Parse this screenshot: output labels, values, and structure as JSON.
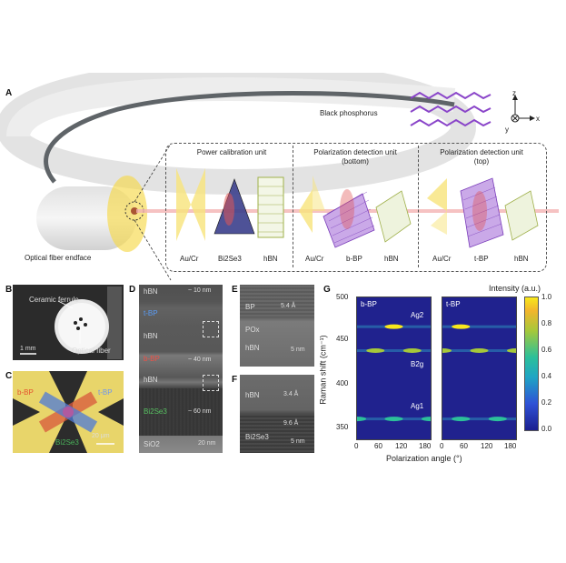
{
  "panels": {
    "A": "A",
    "B": "B",
    "C": "C",
    "D": "D",
    "E": "E",
    "F": "F",
    "G": "G"
  },
  "panelA": {
    "black_phosphorus": "Black phosphorus",
    "axis_z": "z",
    "axis_y": "y",
    "axis_x": "x",
    "fiber_endface": "Optical fiber endface",
    "units": [
      {
        "title": "Power calibration unit",
        "labels": [
          "Au/Cr",
          "Bi2Se3",
          "hBN"
        ]
      },
      {
        "title": "Polarization detection unit",
        "subtitle": "(bottom)",
        "labels": [
          "Au/Cr",
          "b-BP",
          "hBN"
        ]
      },
      {
        "title": "Polarization detection unit",
        "subtitle": "(top)",
        "labels": [
          "Au/Cr",
          "t-BP",
          "hBN"
        ]
      }
    ]
  },
  "panelB": {
    "ceramic_ferrule": "Ceramic ferrule",
    "optical_fiber": "Optical fiber",
    "scale": "1 mm"
  },
  "panelC": {
    "b_bp": "b-BP",
    "t_bp": "t-BP",
    "bi2se3": "Bi2Se3",
    "scale": "20 μm"
  },
  "panelD": {
    "layers": [
      "hBN",
      "t-BP",
      "hBN",
      "b-BP",
      "hBN",
      "Bi2Se3",
      "SiO2"
    ],
    "thick_top": "~ 10 nm",
    "thick_mid": "~ 40 nm",
    "thick_bot": "~ 60 nm",
    "scale": "20 nm"
  },
  "panelE": {
    "bp": "BP",
    "pox": "POx",
    "hbn": "hBN",
    "spacing": "5.4 Å",
    "scale": "5 nm"
  },
  "panelF": {
    "hbn": "hBN",
    "bi2se3": "Bi2Se3",
    "spacing1": "3.4 Å",
    "spacing2": "9.6 Å",
    "scale": "5 nm"
  },
  "panelG": {
    "intensity_label": "Intensity (a.u.)",
    "ylabel": "Raman shift (cm⁻¹)",
    "xlabel": "Polarization angle (°)",
    "left_title": "b-BP",
    "right_title": "t-BP",
    "peak_ag2": "Ag2",
    "peak_b2g": "B2g",
    "peak_ag1": "Ag1",
    "yticks": [
      "500",
      "450",
      "400",
      "350"
    ],
    "xticks": [
      "0",
      "60",
      "120",
      "180"
    ],
    "cticks": [
      "1.0",
      "0.8",
      "0.6",
      "0.4",
      "0.2",
      "0.0"
    ]
  },
  "chart_data": {
    "type": "heatmap",
    "xlabel": "Polarization angle (°)",
    "ylabel": "Raman shift (cm⁻¹)",
    "xlim": [
      0,
      180
    ],
    "ylim": [
      340,
      500
    ],
    "clim": [
      0,
      1
    ],
    "series": [
      {
        "name": "b-BP",
        "peaks": [
          {
            "label": "Ag2",
            "shift": 467,
            "max_at_deg": [
              90
            ],
            "intensity": 1.0
          },
          {
            "label": "B2g",
            "shift": 440,
            "max_at_deg": [
              45,
              135
            ],
            "intensity": 0.55
          },
          {
            "label": "Ag1",
            "shift": 363,
            "max_at_deg": [
              0,
              90,
              180
            ],
            "intensity": 0.45
          }
        ]
      },
      {
        "name": "t-BP",
        "peaks": [
          {
            "label": "Ag2",
            "shift": 467,
            "max_at_deg": [
              45
            ],
            "intensity": 1.0
          },
          {
            "label": "B2g",
            "shift": 440,
            "max_at_deg": [
              0,
              90,
              180
            ],
            "intensity": 0.6
          },
          {
            "label": "Ag1",
            "shift": 363,
            "max_at_deg": [
              45,
              135
            ],
            "intensity": 0.4
          }
        ]
      }
    ]
  }
}
